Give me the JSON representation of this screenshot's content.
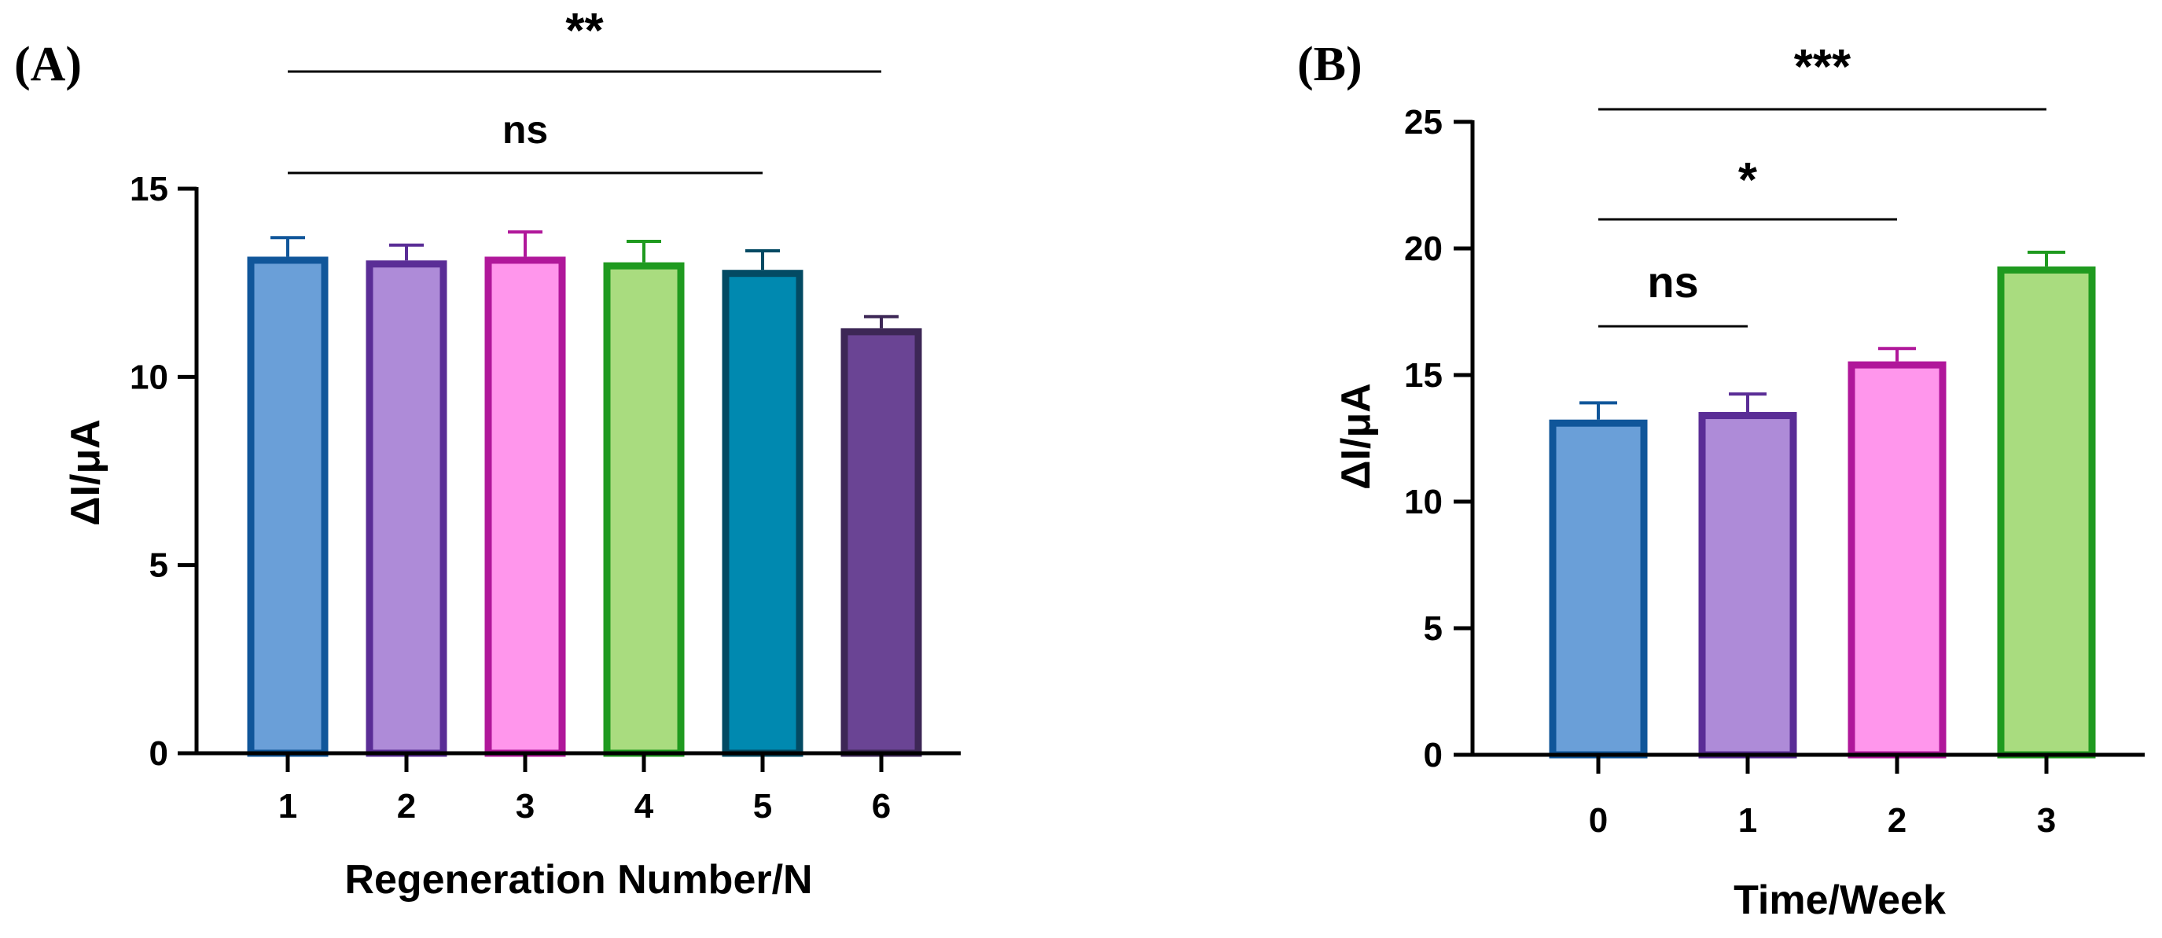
{
  "chart_data": [
    {
      "panel": "(A)",
      "type": "bar",
      "xlabel": "Regeneration Number/N",
      "ylabel": "ΔI/μA",
      "categories": [
        "1",
        "2",
        "3",
        "4",
        "5",
        "6"
      ],
      "values": [
        13.1,
        13.0,
        13.1,
        12.95,
        12.75,
        11.2
      ],
      "errors": [
        0.6,
        0.5,
        0.75,
        0.65,
        0.6,
        0.4
      ],
      "ylim": [
        0,
        15
      ],
      "yticks": [
        "0",
        "5",
        "10",
        "15"
      ],
      "fill_colors": [
        "#6a9fd8",
        "#ae8bd8",
        "#ff96ec",
        "#a9dc7f",
        "#0089b0",
        "#6a4494"
      ],
      "stroke_colors": [
        "#10569a",
        "#5a2d96",
        "#b0179a",
        "#1f9a1f",
        "#034a63",
        "#3d2756"
      ],
      "significance": [
        {
          "label": "**",
          "from": "1",
          "to": "6"
        },
        {
          "label": "ns",
          "from": "1",
          "to": "5"
        }
      ],
      "grid": false,
      "legend": "none"
    },
    {
      "panel": "(B)",
      "type": "bar",
      "xlabel": "Time/Week",
      "ylabel": "ΔI/μA",
      "categories": [
        "0",
        "1",
        "2",
        "3"
      ],
      "values": [
        13.1,
        13.4,
        15.4,
        19.15
      ],
      "errors": [
        0.8,
        0.85,
        0.65,
        0.7
      ],
      "ylim": [
        0,
        25
      ],
      "yticks": [
        "0",
        "5",
        "10",
        "15",
        "20",
        "25"
      ],
      "fill_colors": [
        "#6a9fd8",
        "#ae8bd8",
        "#ff96ec",
        "#a9dc7f"
      ],
      "stroke_colors": [
        "#10569a",
        "#5a2d96",
        "#b0179a",
        "#1f9a1f"
      ],
      "significance": [
        {
          "label": "***",
          "from": "0",
          "to": "3"
        },
        {
          "label": "*",
          "from": "0",
          "to": "2"
        },
        {
          "label": "ns",
          "from": "0",
          "to": "1"
        }
      ],
      "grid": false,
      "legend": "none"
    }
  ]
}
